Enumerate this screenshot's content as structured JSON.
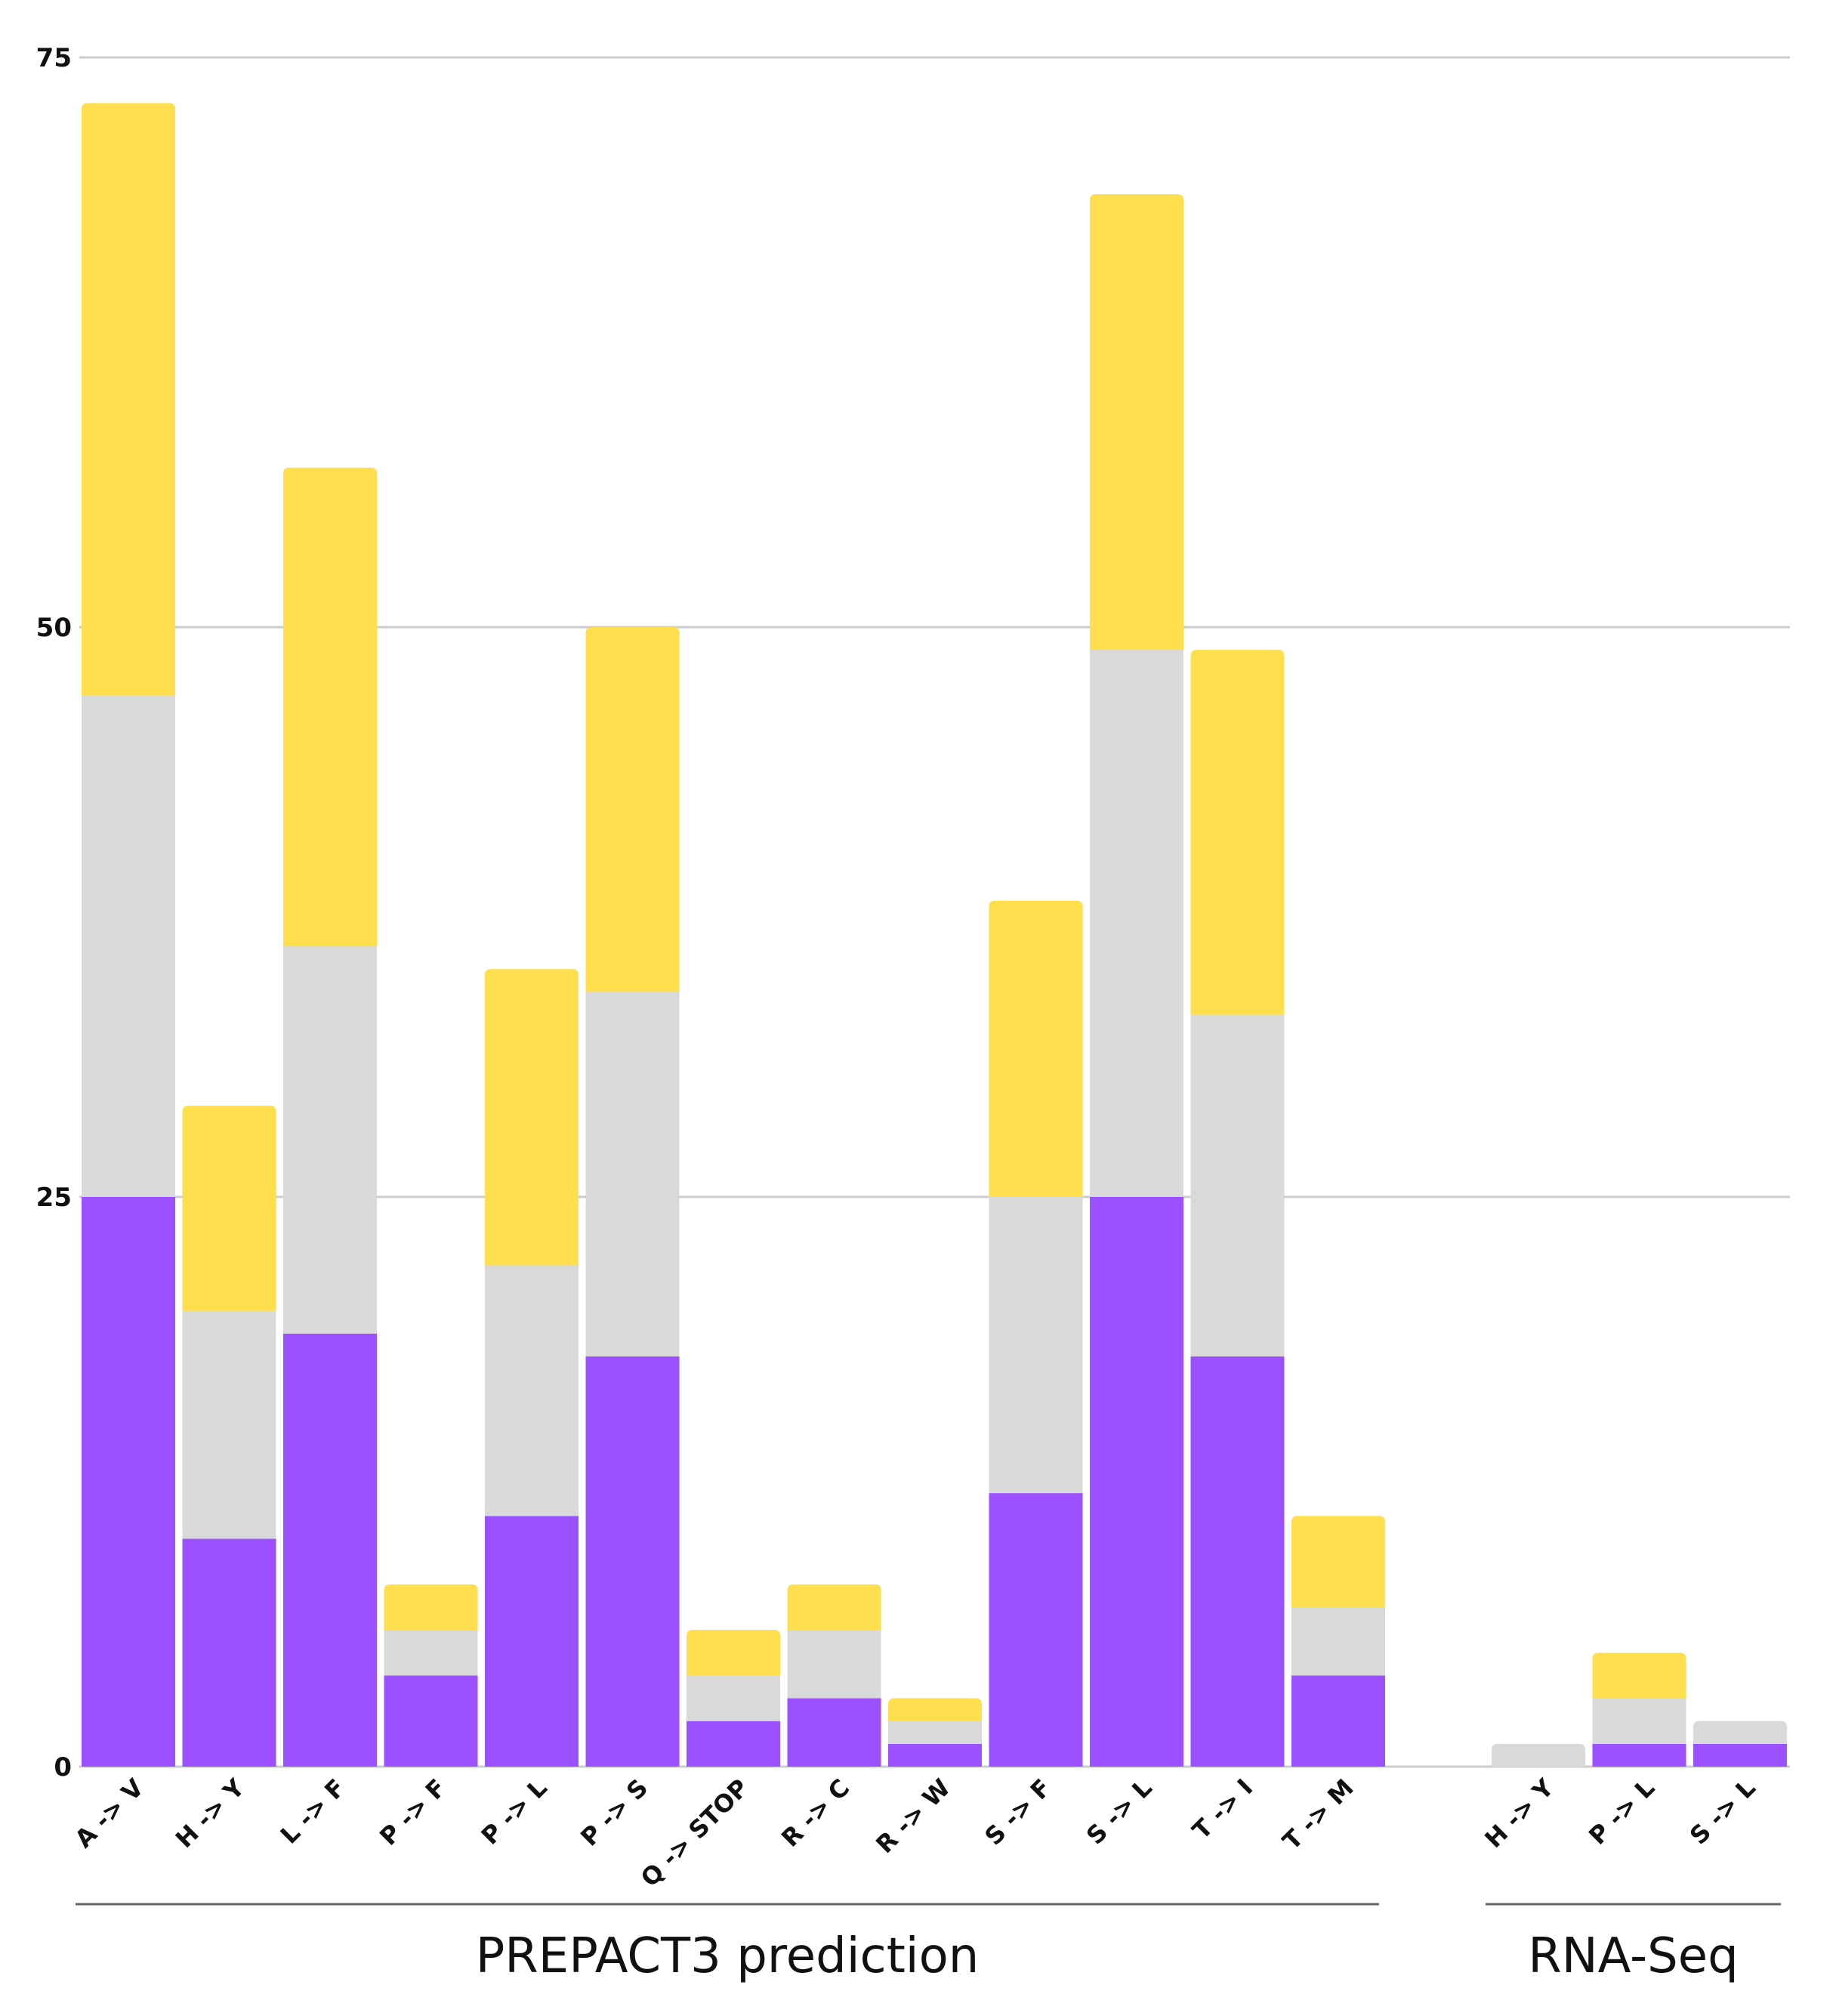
{
  "chart_data": {
    "type": "bar",
    "stacked": true,
    "categories": [
      "A -> V",
      "H -> Y",
      "L -> F",
      "P -> F",
      "P -> L",
      "P -> S",
      "Q -> STOP",
      "R -> C",
      "R -> W",
      "S -> F",
      "S -> L",
      "T -> I",
      "T -> M",
      "H -> Y",
      "P -> L",
      "S -> L"
    ],
    "groups": [
      {
        "label": "PREPACT3 prediction",
        "categories": [
          0,
          12
        ]
      },
      {
        "label": "RNA-Seq",
        "categories": [
          13,
          15
        ]
      }
    ],
    "series": [
      {
        "color": "#9b51ff",
        "values": [
          25,
          10,
          19,
          4,
          11,
          18,
          2,
          3,
          1,
          12,
          25,
          18,
          4,
          0,
          1,
          1
        ]
      },
      {
        "color": "#d9d9d9",
        "values": [
          22,
          10,
          17,
          2,
          11,
          16,
          2,
          3,
          1,
          13,
          24,
          15,
          3,
          1,
          2,
          1
        ]
      },
      {
        "color": "#ffdf4d",
        "values": [
          26,
          9,
          21,
          2,
          13,
          16,
          2,
          2,
          1,
          13,
          20,
          16,
          4,
          0,
          2,
          0
        ]
      }
    ],
    "ylim": [
      0,
      75
    ],
    "yticks": [
      "0",
      "25",
      "50",
      "75"
    ],
    "grid": true,
    "legend": "none",
    "title": "",
    "xlabel": "",
    "ylabel": ""
  }
}
